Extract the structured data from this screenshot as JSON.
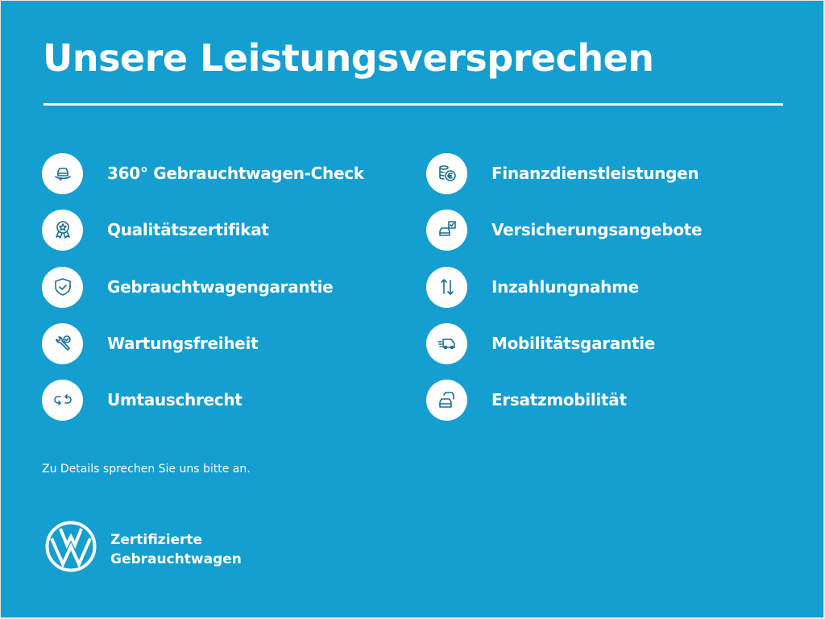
{
  "title": "Unsere Leistungsversprechen",
  "left_items": [
    {
      "label": "360° Gebrauchtwagen-Check",
      "icon": "car-360-icon"
    },
    {
      "label": "Qualitätszertifikat",
      "icon": "award-icon"
    },
    {
      "label": "Gebrauchtwagengarantie",
      "icon": "shield-check-icon"
    },
    {
      "label": "Wartungsfreiheit",
      "icon": "wrench-check-icon"
    },
    {
      "label": "Umtauschrecht",
      "icon": "exchange-icon"
    }
  ],
  "right_items": [
    {
      "label": "Finanzdienstleistungen",
      "icon": "coins-euro-icon"
    },
    {
      "label": "Versicherungsangebote",
      "icon": "car-insurance-icon"
    },
    {
      "label": "Inzahlungnahme",
      "icon": "arrows-up-down-icon"
    },
    {
      "label": "Mobilitätsgarantie",
      "icon": "van-icon"
    },
    {
      "label": "Ersatzmobilität",
      "icon": "cars-icon"
    }
  ],
  "note": "Zu Details sprechen Sie uns bitte an.",
  "brand": {
    "line1": "Zertifizierte",
    "line2": "Gebrauchtwagen",
    "logo": "VW"
  },
  "colors": {
    "background": "#159ed0",
    "icon": "#1a6f96"
  }
}
